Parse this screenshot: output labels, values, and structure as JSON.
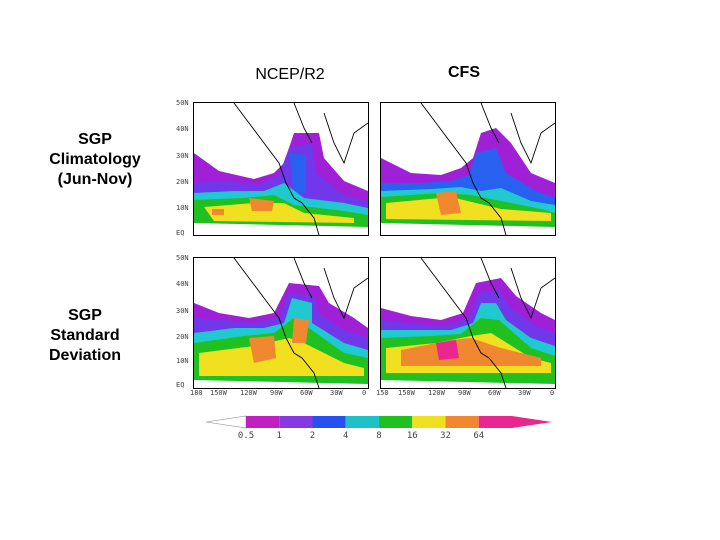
{
  "columns": [
    {
      "title": "NCEP/R2"
    },
    {
      "title": "CFS"
    }
  ],
  "rows": [
    {
      "label_lines": [
        "SGP",
        "Climatology",
        "(Jun-Nov)"
      ]
    },
    {
      "label_lines": [
        "SGP",
        "Standard",
        "Deviation"
      ]
    }
  ],
  "lat_ticks": [
    "50N",
    "40N",
    "30N",
    "20N",
    "10N",
    "EQ"
  ],
  "lon_ticks_left": [
    "180",
    "150W",
    "120W",
    "90W",
    "60W",
    "30W",
    "0"
  ],
  "lon_ticks_right": [
    "150",
    "150W",
    "120W",
    "90W",
    "60W",
    "30W",
    "0"
  ],
  "colorbar": {
    "ticks": [
      "0.5",
      "1",
      "2",
      "4",
      "8",
      "16",
      "32",
      "64"
    ],
    "colors": [
      "#c020c0",
      "#8838e0",
      "#2850f0",
      "#20c0c8",
      "#20c020",
      "#f0e020",
      "#f08830",
      "#e82890"
    ],
    "low_arrow_color": "#ffffff",
    "high_arrow_color": "#e82890"
  },
  "palette": {
    "purple": "#a020d8",
    "violet": "#7038e8",
    "blue": "#2860f0",
    "cyan": "#20c8d0",
    "green": "#20c020",
    "yellow": "#f0e020",
    "orange": "#f08830",
    "magenta": "#e82890"
  }
}
